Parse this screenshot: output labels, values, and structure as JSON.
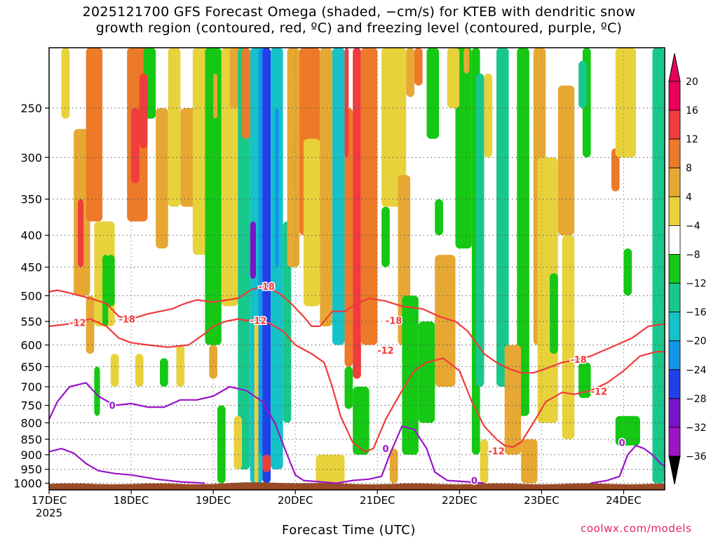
{
  "title_line1": "2025121700 GFS Forecast Omega (shaded, −cm/s) for KTEB with dendritic snow",
  "title_line2": "growth region (contoured, red, ºC) and freezing level (contoured, purple, ºC)",
  "credit": "coolwx.com/models",
  "chart_data": {
    "type": "heatmap",
    "xlabel": "Forecast Time (UTC)",
    "ylabel": "",
    "x_ticks": [
      {
        "label": "17DEC",
        "sublabel": "2025",
        "day": 0
      },
      {
        "label": "18DEC",
        "day": 1
      },
      {
        "label": "19DEC",
        "day": 2
      },
      {
        "label": "20DEC",
        "day": 3
      },
      {
        "label": "21DEC",
        "day": 4
      },
      {
        "label": "22DEC",
        "day": 5
      },
      {
        "label": "23DEC",
        "day": 6
      },
      {
        "label": "24DEC",
        "day": 7
      }
    ],
    "x_range_days": [
      0,
      7.5
    ],
    "y_ticks": [
      250,
      300,
      350,
      400,
      450,
      500,
      550,
      600,
      650,
      700,
      750,
      800,
      850,
      900,
      950,
      1000
    ],
    "y_range_hpa": [
      200,
      1025
    ],
    "y_scale": "log",
    "grid": true,
    "colorbar": {
      "levels": [
        "20",
        "16",
        "12",
        "8",
        "4",
        "−4",
        "−8",
        "−12",
        "−16",
        "−20",
        "−24",
        "−28",
        "−32",
        "−36"
      ],
      "colors": [
        "#e8005a",
        "#f03c3c",
        "#ec7a28",
        "#e6a832",
        "#e8d23c",
        "#ffffff",
        "#14c814",
        "#18c88a",
        "#14c2c8",
        "#1496ec",
        "#2040e8",
        "#7a14c8",
        "#a014c8",
        "#a0a0a0"
      ],
      "top_color": "#e8005a",
      "bottom_color": "#000000"
    },
    "omega_cells": [
      {
        "x0": 0.3,
        "x1": 0.5,
        "p0": 270,
        "p1": 500,
        "c": 3
      },
      {
        "x0": 0.45,
        "x1": 0.65,
        "p0": 160,
        "p1": 380,
        "c": 2
      },
      {
        "x0": 0.55,
        "x1": 0.8,
        "p0": 380,
        "p1": 560,
        "c": 4
      },
      {
        "x0": 0.7,
        "x1": 0.8,
        "p0": 430,
        "p1": 520,
        "c": 6
      },
      {
        "x0": 0.95,
        "x1": 1.2,
        "p0": 200,
        "p1": 380,
        "c": 2
      },
      {
        "x0": 1.0,
        "x1": 1.1,
        "p0": 250,
        "p1": 330,
        "c": 1
      },
      {
        "x0": 1.15,
        "x1": 1.3,
        "p0": 160,
        "p1": 260,
        "c": 6
      },
      {
        "x0": 1.3,
        "x1": 1.45,
        "p0": 250,
        "p1": 420,
        "c": 3
      },
      {
        "x0": 1.45,
        "x1": 1.6,
        "p0": 160,
        "p1": 360,
        "c": 4
      },
      {
        "x0": 1.6,
        "x1": 1.85,
        "p0": 250,
        "p1": 360,
        "c": 3
      },
      {
        "x0": 1.75,
        "x1": 1.95,
        "p0": 160,
        "p1": 430,
        "c": 4
      },
      {
        "x0": 1.9,
        "x1": 2.1,
        "p0": 180,
        "p1": 600,
        "c": 6
      },
      {
        "x0": 2.1,
        "x1": 2.3,
        "p0": 180,
        "p1": 520,
        "c": 4
      },
      {
        "x0": 2.2,
        "x1": 2.35,
        "p0": 160,
        "p1": 250,
        "c": 3
      },
      {
        "x0": 2.3,
        "x1": 2.45,
        "p0": 200,
        "p1": 950,
        "c": 7
      },
      {
        "x0": 2.45,
        "x1": 2.6,
        "p0": 160,
        "p1": 1000,
        "c": 8
      },
      {
        "x0": 2.55,
        "x1": 2.65,
        "p0": 200,
        "p1": 900,
        "c": 9
      },
      {
        "x0": 2.6,
        "x1": 2.7,
        "p0": 160,
        "p1": 1000,
        "c": 10
      },
      {
        "x0": 2.7,
        "x1": 2.85,
        "p0": 160,
        "p1": 950,
        "c": 8
      },
      {
        "x0": 2.85,
        "x1": 2.95,
        "p0": 380,
        "p1": 800,
        "c": 7
      },
      {
        "x0": 2.9,
        "x1": 3.05,
        "p0": 160,
        "p1": 450,
        "c": 3
      },
      {
        "x0": 3.05,
        "x1": 3.3,
        "p0": 160,
        "p1": 400,
        "c": 2
      },
      {
        "x0": 3.1,
        "x1": 3.3,
        "p0": 280,
        "p1": 520,
        "c": 4
      },
      {
        "x0": 3.3,
        "x1": 3.45,
        "p0": 160,
        "p1": 560,
        "c": 3
      },
      {
        "x0": 3.45,
        "x1": 3.6,
        "p0": 160,
        "p1": 600,
        "c": 8
      },
      {
        "x0": 3.6,
        "x1": 3.7,
        "p0": 250,
        "p1": 650,
        "c": 2
      },
      {
        "x0": 3.7,
        "x1": 3.8,
        "p0": 200,
        "p1": 680,
        "c": 1
      },
      {
        "x0": 3.8,
        "x1": 4.0,
        "p0": 160,
        "p1": 600,
        "c": 2
      },
      {
        "x0": 3.25,
        "x1": 3.6,
        "p0": 900,
        "p1": 1000,
        "c": 4
      },
      {
        "x0": 4.05,
        "x1": 4.35,
        "p0": 160,
        "p1": 360,
        "c": 4
      },
      {
        "x0": 4.25,
        "x1": 4.4,
        "p0": 320,
        "p1": 600,
        "c": 3
      },
      {
        "x0": 4.3,
        "x1": 4.5,
        "p0": 500,
        "p1": 900,
        "c": 6
      },
      {
        "x0": 4.5,
        "x1": 4.7,
        "p0": 550,
        "p1": 800,
        "c": 6
      },
      {
        "x0": 4.7,
        "x1": 4.95,
        "p0": 430,
        "p1": 700,
        "c": 3
      },
      {
        "x0": 4.6,
        "x1": 4.75,
        "p0": 180,
        "p1": 280,
        "c": 6
      },
      {
        "x0": 4.95,
        "x1": 5.15,
        "p0": 180,
        "p1": 420,
        "c": 6
      },
      {
        "x0": 5.15,
        "x1": 5.25,
        "p0": 200,
        "p1": 900,
        "c": 6
      },
      {
        "x0": 5.2,
        "x1": 5.3,
        "p0": 220,
        "p1": 700,
        "c": 7
      },
      {
        "x0": 5.25,
        "x1": 5.35,
        "p0": 850,
        "p1": 1000,
        "c": 4
      },
      {
        "x0": 5.45,
        "x1": 5.6,
        "p0": 160,
        "p1": 700,
        "c": 7
      },
      {
        "x0": 5.7,
        "x1": 5.85,
        "p0": 180,
        "p1": 780,
        "c": 6
      },
      {
        "x0": 5.9,
        "x1": 6.05,
        "p0": 160,
        "p1": 600,
        "c": 3
      },
      {
        "x0": 5.95,
        "x1": 6.2,
        "p0": 300,
        "p1": 800,
        "c": 4
      },
      {
        "x0": 6.2,
        "x1": 6.4,
        "p0": 230,
        "p1": 400,
        "c": 3
      },
      {
        "x0": 6.25,
        "x1": 6.4,
        "p0": 400,
        "p1": 850,
        "c": 4
      },
      {
        "x0": 6.5,
        "x1": 6.6,
        "p0": 160,
        "p1": 300,
        "c": 6
      },
      {
        "x0": 6.85,
        "x1": 6.95,
        "p0": 290,
        "p1": 340,
        "c": 2
      },
      {
        "x0": 6.9,
        "x1": 7.15,
        "p0": 160,
        "p1": 300,
        "c": 4
      },
      {
        "x0": 7.35,
        "x1": 7.5,
        "p0": 160,
        "p1": 1000,
        "c": 7
      },
      {
        "x0": 6.9,
        "x1": 7.2,
        "p0": 780,
        "p1": 870,
        "c": 6
      },
      {
        "x0": 2.05,
        "x1": 2.15,
        "p0": 750,
        "p1": 1000,
        "c": 6
      },
      {
        "x0": 2.5,
        "x1": 2.55,
        "p0": 550,
        "p1": 1000,
        "c": 4
      },
      {
        "x0": 3.7,
        "x1": 3.9,
        "p0": 700,
        "p1": 900,
        "c": 6
      },
      {
        "x0": 0.55,
        "x1": 0.62,
        "p0": 650,
        "p1": 780,
        "c": 6
      },
      {
        "x0": 0.65,
        "x1": 0.72,
        "p0": 430,
        "p1": 560,
        "c": 6
      },
      {
        "x0": 1.05,
        "x1": 1.15,
        "p0": 620,
        "p1": 700,
        "c": 4
      },
      {
        "x0": 1.95,
        "x1": 2.05,
        "p0": 600,
        "p1": 680,
        "c": 3
      },
      {
        "x0": 2.75,
        "x1": 2.8,
        "p0": 250,
        "p1": 450,
        "c": 9
      },
      {
        "x0": 2.45,
        "x1": 2.52,
        "p0": 380,
        "p1": 470,
        "c": 11
      },
      {
        "x0": 2.0,
        "x1": 2.05,
        "p0": 220,
        "p1": 260,
        "c": 3
      },
      {
        "x0": 3.6,
        "x1": 3.65,
        "p0": 160,
        "p1": 300,
        "c": 1
      },
      {
        "x0": 5.3,
        "x1": 5.4,
        "p0": 220,
        "p1": 300,
        "c": 4
      },
      {
        "x0": 0.15,
        "x1": 0.25,
        "p0": 180,
        "p1": 260,
        "c": 4
      },
      {
        "x0": 1.55,
        "x1": 1.65,
        "p0": 600,
        "p1": 700,
        "c": 4
      },
      {
        "x0": 1.35,
        "x1": 1.45,
        "p0": 630,
        "p1": 700,
        "c": 6
      },
      {
        "x0": 2.25,
        "x1": 2.35,
        "p0": 780,
        "p1": 950,
        "c": 4
      },
      {
        "x0": 0.45,
        "x1": 0.55,
        "p0": 500,
        "p1": 620,
        "c": 3
      },
      {
        "x0": 4.15,
        "x1": 4.25,
        "p0": 880,
        "p1": 1000,
        "c": 3
      },
      {
        "x0": 5.75,
        "x1": 5.95,
        "p0": 850,
        "p1": 1000,
        "c": 3
      },
      {
        "x0": 6.1,
        "x1": 6.2,
        "p0": 460,
        "p1": 620,
        "c": 6
      },
      {
        "x0": 2.6,
        "x1": 2.7,
        "p0": 900,
        "p1": 960,
        "c": 1
      },
      {
        "x0": 6.45,
        "x1": 6.6,
        "p0": 640,
        "p1": 730,
        "c": 6
      },
      {
        "x0": 5.55,
        "x1": 5.75,
        "p0": 600,
        "p1": 900,
        "c": 3
      },
      {
        "x0": 0.75,
        "x1": 0.85,
        "p0": 620,
        "p1": 700,
        "c": 4
      },
      {
        "x0": 4.7,
        "x1": 4.8,
        "p0": 350,
        "p1": 400,
        "c": 6
      },
      {
        "x0": 4.85,
        "x1": 5.0,
        "p0": 180,
        "p1": 250,
        "c": 4
      },
      {
        "x0": 6.45,
        "x1": 6.55,
        "p0": 210,
        "p1": 250,
        "c": 7
      },
      {
        "x0": 7.0,
        "x1": 7.1,
        "p0": 420,
        "p1": 500,
        "c": 6
      },
      {
        "x0": 1.1,
        "x1": 1.2,
        "p0": 220,
        "p1": 290,
        "c": 1
      },
      {
        "x0": 0.35,
        "x1": 0.42,
        "p0": 350,
        "p1": 450,
        "c": 1
      },
      {
        "x0": 2.35,
        "x1": 2.45,
        "p0": 160,
        "p1": 280,
        "c": 2
      },
      {
        "x0": 3.6,
        "x1": 3.7,
        "p0": 650,
        "p1": 760,
        "c": 6
      },
      {
        "x0": 4.05,
        "x1": 4.15,
        "p0": 360,
        "p1": 450,
        "c": 6
      },
      {
        "x0": 4.35,
        "x1": 4.45,
        "p0": 160,
        "p1": 240,
        "c": 3
      },
      {
        "x0": 4.45,
        "x1": 4.55,
        "p0": 160,
        "p1": 230,
        "c": 2
      },
      {
        "x0": 5.05,
        "x1": 5.12,
        "p0": 160,
        "p1": 220,
        "c": 3
      }
    ],
    "dendritic_red_contours": [
      {
        "label": "-18",
        "points": [
          [
            0,
            493
          ],
          [
            0.1,
            490
          ],
          [
            0.25,
            495
          ],
          [
            0.5,
            505
          ],
          [
            0.7,
            515
          ],
          [
            0.85,
            540
          ],
          [
            1.0,
            545
          ],
          [
            1.2,
            535
          ],
          [
            1.5,
            525
          ],
          [
            1.65,
            515
          ],
          [
            1.8,
            508
          ],
          [
            2.0,
            512
          ],
          [
            2.3,
            505
          ],
          [
            2.45,
            490
          ],
          [
            2.6,
            483
          ],
          [
            2.8,
            495
          ],
          [
            2.95,
            515
          ],
          [
            3.1,
            540
          ],
          [
            3.2,
            560
          ],
          [
            3.3,
            560
          ],
          [
            3.45,
            530
          ],
          [
            3.6,
            530
          ],
          [
            3.75,
            515
          ],
          [
            3.9,
            505
          ],
          [
            4.1,
            510
          ],
          [
            4.3,
            520
          ],
          [
            4.55,
            525
          ],
          [
            4.75,
            540
          ],
          [
            4.95,
            550
          ],
          [
            5.1,
            570
          ],
          [
            5.3,
            620
          ],
          [
            5.45,
            640
          ],
          [
            5.6,
            655
          ],
          [
            5.75,
            665
          ],
          [
            5.9,
            665
          ],
          [
            6.05,
            655
          ],
          [
            6.25,
            640
          ],
          [
            6.4,
            635
          ],
          [
            6.6,
            625
          ],
          [
            6.85,
            605
          ],
          [
            7.1,
            585
          ],
          [
            7.3,
            560
          ],
          [
            7.5,
            555
          ]
        ]
      },
      {
        "label": "-12",
        "points": [
          [
            0,
            560
          ],
          [
            0.25,
            555
          ],
          [
            0.5,
            545
          ],
          [
            0.7,
            560
          ],
          [
            0.85,
            585
          ],
          [
            1.0,
            595
          ],
          [
            1.2,
            600
          ],
          [
            1.45,
            605
          ],
          [
            1.7,
            600
          ],
          [
            1.9,
            575
          ],
          [
            2.0,
            560
          ],
          [
            2.15,
            550
          ],
          [
            2.3,
            545
          ],
          [
            2.4,
            548
          ],
          [
            2.55,
            545
          ],
          [
            2.7,
            555
          ],
          [
            2.85,
            570
          ],
          [
            3.0,
            600
          ],
          [
            3.2,
            620
          ],
          [
            3.35,
            640
          ],
          [
            3.45,
            700
          ],
          [
            3.55,
            780
          ],
          [
            3.7,
            860
          ],
          [
            3.85,
            890
          ],
          [
            3.95,
            880
          ],
          [
            4.1,
            790
          ],
          [
            4.3,
            710
          ],
          [
            4.45,
            660
          ],
          [
            4.6,
            640
          ],
          [
            4.8,
            630
          ],
          [
            5.0,
            660
          ],
          [
            5.15,
            740
          ],
          [
            5.3,
            810
          ],
          [
            5.45,
            850
          ],
          [
            5.55,
            870
          ],
          [
            5.65,
            875
          ],
          [
            5.75,
            860
          ],
          [
            5.9,
            800
          ],
          [
            6.05,
            740
          ],
          [
            6.25,
            715
          ],
          [
            6.4,
            720
          ],
          [
            6.6,
            710
          ],
          [
            6.8,
            690
          ],
          [
            7.0,
            660
          ],
          [
            7.2,
            625
          ],
          [
            7.4,
            615
          ],
          [
            7.5,
            615
          ]
        ]
      }
    ],
    "freezing_purple_contours": [
      {
        "label": "0",
        "points": [
          [
            0,
            790
          ],
          [
            0.1,
            740
          ],
          [
            0.25,
            700
          ],
          [
            0.45,
            690
          ],
          [
            0.6,
            725
          ],
          [
            0.8,
            750
          ],
          [
            1.0,
            745
          ],
          [
            1.2,
            755
          ],
          [
            1.4,
            755
          ],
          [
            1.6,
            735
          ],
          [
            1.8,
            735
          ],
          [
            2.0,
            725
          ],
          [
            2.2,
            700
          ],
          [
            2.4,
            710
          ],
          [
            2.6,
            740
          ],
          [
            2.75,
            800
          ],
          [
            2.9,
            900
          ],
          [
            3.0,
            970
          ],
          [
            3.1,
            990
          ],
          [
            3.3,
            995
          ],
          [
            3.5,
            1000
          ],
          [
            3.7,
            990
          ],
          [
            3.9,
            985
          ],
          [
            4.05,
            975
          ],
          [
            4.15,
            900
          ],
          [
            4.3,
            810
          ],
          [
            4.45,
            820
          ],
          [
            4.6,
            880
          ],
          [
            4.7,
            960
          ],
          [
            4.85,
            990
          ],
          [
            5.1,
            995
          ],
          [
            5.3,
            1000
          ]
        ]
      },
      {
        "label": "0",
        "points": [
          [
            0,
            890
          ],
          [
            0.15,
            880
          ],
          [
            0.3,
            895
          ],
          [
            0.45,
            930
          ],
          [
            0.6,
            955
          ],
          [
            0.8,
            965
          ],
          [
            1.0,
            970
          ],
          [
            1.3,
            985
          ],
          [
            1.6,
            995
          ],
          [
            1.9,
            1000
          ]
        ]
      },
      {
        "label": "0",
        "points": [
          [
            6.6,
            1000
          ],
          [
            6.8,
            990
          ],
          [
            6.95,
            975
          ],
          [
            7.05,
            900
          ],
          [
            7.15,
            870
          ],
          [
            7.25,
            880
          ],
          [
            7.35,
            900
          ],
          [
            7.45,
            930
          ],
          [
            7.5,
            940
          ]
        ]
      }
    ]
  }
}
